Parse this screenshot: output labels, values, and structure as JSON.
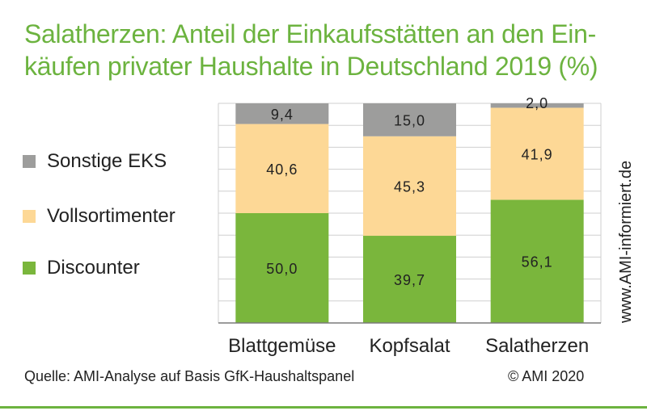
{
  "title_lines": [
    "Salatherzen: Anteil der Einkaufsstätten an den Ein-",
    "käufen privater Haushalte in Deutschland 2019 (%)"
  ],
  "legend": [
    {
      "label": "Sonstige EKS",
      "color": "#9d9d9c"
    },
    {
      "label": "Vollsortimenter",
      "color": "#fdd896"
    },
    {
      "label": "Discounter",
      "color": "#7ab63c"
    }
  ],
  "watermark": "www.AMI-informiert.de",
  "source": "Quelle: AMI-Analyse auf Basis GfK-Haushaltspanel",
  "copyright": "© AMI 2020",
  "chart_data": {
    "type": "bar",
    "stacked": true,
    "categories": [
      "Blattgemüse",
      "Kopfsalat",
      "Salatherzen"
    ],
    "series": [
      {
        "name": "Discounter",
        "color": "#7ab63c",
        "values": [
          50.0,
          39.7,
          56.1
        ],
        "labels": [
          "50,0",
          "39,7",
          "56,1"
        ]
      },
      {
        "name": "Vollsortimenter",
        "color": "#fdd896",
        "values": [
          40.6,
          45.3,
          41.9
        ],
        "labels": [
          "40,6",
          "45,3",
          "41,9"
        ]
      },
      {
        "name": "Sonstige EKS",
        "color": "#9d9d9c",
        "values": [
          9.4,
          15.0,
          2.0
        ],
        "labels": [
          "9,4",
          "15,0",
          "2,0"
        ]
      }
    ],
    "ylim": [
      0,
      100
    ],
    "grid": true,
    "legend_position": "left"
  }
}
